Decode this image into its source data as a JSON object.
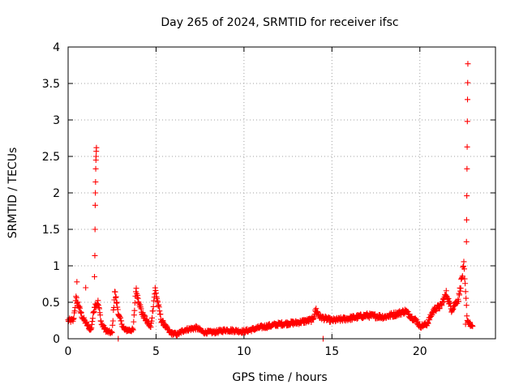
{
  "chart_data": {
    "type": "scatter",
    "title": "Day 265 of 2024, SRMTID for receiver ifsc",
    "xlabel": "GPS time / hours",
    "ylabel": "SRMTID / TECUs",
    "xlim": [
      0,
      24.3
    ],
    "ylim": [
      0,
      4
    ],
    "xticks": [
      0,
      5,
      10,
      15,
      20
    ],
    "yticks": [
      0,
      0.5,
      1,
      1.5,
      2,
      2.5,
      3,
      3.5,
      4
    ],
    "ytick_labels": [
      "0",
      "0.5",
      "1",
      "1.5",
      "2",
      "2.5",
      "3",
      "3.5",
      "4"
    ],
    "grid": true,
    "marker": "plus",
    "color": "#ff0000",
    "series": [
      {
        "name": "SRMTID",
        "profile": [
          [
            0.0,
            0.25
          ],
          [
            0.3,
            0.25
          ],
          [
            0.45,
            0.55
          ],
          [
            0.6,
            0.45
          ],
          [
            0.8,
            0.3
          ],
          [
            1.1,
            0.18
          ],
          [
            1.3,
            0.12
          ],
          [
            1.5,
            0.45
          ],
          [
            1.7,
            0.5
          ],
          [
            1.9,
            0.2
          ],
          [
            2.2,
            0.1
          ],
          [
            2.5,
            0.08
          ],
          [
            2.65,
            0.65
          ],
          [
            2.9,
            0.3
          ],
          [
            3.2,
            0.12
          ],
          [
            3.7,
            0.12
          ],
          [
            3.85,
            0.68
          ],
          [
            4.2,
            0.35
          ],
          [
            4.7,
            0.15
          ],
          [
            4.95,
            0.68
          ],
          [
            5.3,
            0.25
          ],
          [
            5.8,
            0.08
          ],
          [
            6.2,
            0.06
          ],
          [
            6.6,
            0.12
          ],
          [
            7.3,
            0.15
          ],
          [
            7.7,
            0.09
          ],
          [
            8.3,
            0.09
          ],
          [
            9.0,
            0.12
          ],
          [
            10.0,
            0.1
          ],
          [
            11.0,
            0.16
          ],
          [
            12.0,
            0.2
          ],
          [
            13.0,
            0.22
          ],
          [
            13.9,
            0.26
          ],
          [
            14.1,
            0.4
          ],
          [
            14.3,
            0.3
          ],
          [
            15.0,
            0.25
          ],
          [
            16.0,
            0.28
          ],
          [
            17.0,
            0.32
          ],
          [
            18.0,
            0.3
          ],
          [
            18.8,
            0.35
          ],
          [
            19.2,
            0.38
          ],
          [
            19.5,
            0.3
          ],
          [
            19.8,
            0.25
          ],
          [
            20.0,
            0.17
          ],
          [
            20.4,
            0.2
          ],
          [
            20.8,
            0.4
          ],
          [
            21.2,
            0.45
          ],
          [
            21.5,
            0.62
          ],
          [
            21.8,
            0.4
          ],
          [
            22.2,
            0.55
          ],
          [
            22.5,
            1.0
          ],
          [
            22.7,
            0.25
          ],
          [
            23.0,
            0.15
          ]
        ],
        "outliers": [
          [
            0.5,
            0.78
          ],
          [
            1.0,
            0.7
          ],
          [
            1.5,
            0.85
          ],
          [
            1.52,
            1.14
          ],
          [
            1.53,
            1.5
          ],
          [
            1.54,
            1.83
          ],
          [
            1.55,
            2.0
          ],
          [
            1.56,
            2.15
          ],
          [
            1.57,
            2.33
          ],
          [
            1.58,
            2.45
          ],
          [
            1.59,
            2.5
          ],
          [
            1.6,
            2.57
          ],
          [
            1.61,
            2.62
          ],
          [
            2.85,
            0.0
          ],
          [
            14.5,
            0.0
          ],
          [
            22.6,
            0.2
          ],
          [
            22.65,
            1.33
          ],
          [
            22.66,
            1.63
          ],
          [
            22.67,
            1.96
          ],
          [
            22.68,
            2.33
          ],
          [
            22.69,
            2.63
          ],
          [
            22.7,
            2.98
          ],
          [
            22.71,
            3.28
          ],
          [
            22.72,
            3.51
          ],
          [
            22.73,
            3.77
          ]
        ]
      }
    ]
  }
}
